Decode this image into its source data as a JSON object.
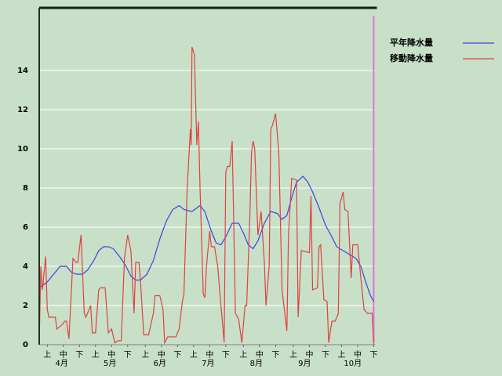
{
  "chart_data": {
    "type": "line",
    "xlim": [
      0,
      209
    ],
    "ylim": [
      0,
      17.2
    ],
    "yticks": [
      0,
      2,
      4,
      6,
      8,
      10,
      12,
      14
    ],
    "grid": true,
    "legend": "right",
    "xticks": [
      {
        "value": 5,
        "label": "上"
      },
      {
        "value": 15,
        "label": "中"
      },
      {
        "value": 25,
        "label": "下"
      },
      {
        "value": 35,
        "label": "上"
      },
      {
        "value": 45,
        "label": "中"
      },
      {
        "value": 55,
        "label": "下"
      },
      {
        "value": 66,
        "label": "上"
      },
      {
        "value": 76,
        "label": "中"
      },
      {
        "value": 86,
        "label": "下"
      },
      {
        "value": 96,
        "label": "上"
      },
      {
        "value": 106,
        "label": "中"
      },
      {
        "value": 116,
        "label": "下"
      },
      {
        "value": 127,
        "label": "上"
      },
      {
        "value": 137,
        "label": "中"
      },
      {
        "value": 147,
        "label": "下"
      },
      {
        "value": 158,
        "label": "上"
      },
      {
        "value": 168,
        "label": "中"
      },
      {
        "value": 178,
        "label": "下"
      },
      {
        "value": 188,
        "label": "上"
      },
      {
        "value": 198,
        "label": "中"
      },
      {
        "value": 208,
        "label": "下"
      }
    ],
    "month_labels": [
      {
        "value": 14,
        "label": "4月"
      },
      {
        "value": 44,
        "label": "5月"
      },
      {
        "value": 75,
        "label": "6月"
      },
      {
        "value": 105,
        "label": "7月"
      },
      {
        "value": 135,
        "label": "8月"
      },
      {
        "value": 165,
        "label": "9月"
      },
      {
        "value": 195,
        "label": "10月"
      }
    ],
    "marker_line": {
      "x": 208,
      "color": "#e070e0"
    },
    "series": [
      {
        "name": "平年降水量",
        "color": "#4040e0",
        "x": [
          0,
          5,
          10,
          13,
          17,
          20,
          23,
          27,
          30,
          34,
          37,
          40,
          43,
          46,
          50,
          54,
          57,
          60,
          63,
          67,
          71,
          75,
          79,
          83,
          87,
          90,
          95,
          100,
          103,
          107,
          110,
          113,
          116,
          120,
          124,
          127,
          130,
          133,
          136,
          140,
          144,
          148,
          151,
          154,
          157,
          160,
          164,
          167,
          170,
          174,
          178,
          182,
          185,
          189,
          193,
          197,
          200,
          203,
          206,
          208
        ],
        "values": [
          2.9,
          3.2,
          3.7,
          4.0,
          4.0,
          3.7,
          3.6,
          3.6,
          3.8,
          4.3,
          4.8,
          5.0,
          5.0,
          4.9,
          4.5,
          4.0,
          3.5,
          3.3,
          3.3,
          3.6,
          4.3,
          5.4,
          6.3,
          6.9,
          7.1,
          6.9,
          6.8,
          7.1,
          6.8,
          5.8,
          5.2,
          5.1,
          5.5,
          6.2,
          6.2,
          5.7,
          5.1,
          4.9,
          5.3,
          6.2,
          6.8,
          6.7,
          6.4,
          6.6,
          7.5,
          8.3,
          8.6,
          8.3,
          7.8,
          7.0,
          6.1,
          5.5,
          5.0,
          4.8,
          4.6,
          4.4,
          4.0,
          3.2,
          2.5,
          2.2
        ]
      },
      {
        "name": "移動降水量",
        "color": "#e04040",
        "x": [
          0,
          1,
          2,
          4,
          5,
          6,
          10,
          11,
          14,
          16,
          17,
          18.5,
          21,
          23,
          24,
          26,
          28,
          29,
          32,
          33,
          35,
          37,
          38,
          41,
          43,
          45,
          47,
          49,
          51,
          53,
          55,
          57,
          59,
          60,
          62,
          63,
          65,
          68,
          71,
          72,
          75,
          77,
          78,
          80,
          85,
          87,
          89,
          90,
          92,
          94,
          94.5,
          95,
          96.5,
          98,
          99,
          100,
          102,
          103,
          104,
          106,
          107,
          109,
          111,
          113,
          115,
          116,
          117,
          118.5,
          120,
          122,
          124,
          126,
          128,
          129,
          131,
          132,
          133,
          134,
          136,
          138,
          140,
          141,
          143,
          144,
          145,
          147,
          149,
          151,
          154,
          155,
          157,
          160,
          161,
          163,
          168,
          169,
          170,
          173,
          174,
          175,
          177,
          179,
          180,
          182,
          184,
          186,
          187,
          189,
          190,
          192,
          194,
          195,
          198,
          200,
          202,
          204,
          207,
          208
        ],
        "values": [
          0,
          4.0,
          2.8,
          4.5,
          1.8,
          1.4,
          1.4,
          0.8,
          1.0,
          1.2,
          1.2,
          0.3,
          4.4,
          4.2,
          4.2,
          5.6,
          1.6,
          1.4,
          2.0,
          0.6,
          0.6,
          2.8,
          2.9,
          2.9,
          0.6,
          0.8,
          0.1,
          0.2,
          0.2,
          4.4,
          5.6,
          4.8,
          1.6,
          4.2,
          4.2,
          3.2,
          0.5,
          0.5,
          1.6,
          2.5,
          2.5,
          1.8,
          0.1,
          0.4,
          0.4,
          0.8,
          2.2,
          2.6,
          8.0,
          11.0,
          10.2,
          15.2,
          14.8,
          10.2,
          11.4,
          8.0,
          2.6,
          2.4,
          4.0,
          5.8,
          5.0,
          5.0,
          4.0,
          2.0,
          0.1,
          8.8,
          9.1,
          9.1,
          10.4,
          1.6,
          1.3,
          0.1,
          2.0,
          2.0,
          6.6,
          9.8,
          10.4,
          10.0,
          5.6,
          6.8,
          4.2,
          2.0,
          4.0,
          11.0,
          11.2,
          11.8,
          9.8,
          2.8,
          0.7,
          5.6,
          8.5,
          8.4,
          1.4,
          4.8,
          4.7,
          7.6,
          2.8,
          2.9,
          5.0,
          5.1,
          2.3,
          2.2,
          0.1,
          1.2,
          1.2,
          1.6,
          7.2,
          7.8,
          6.9,
          6.8,
          3.4,
          5.1,
          5.1,
          3.4,
          1.8,
          1.6,
          1.6,
          0.1
        ]
      }
    ]
  }
}
